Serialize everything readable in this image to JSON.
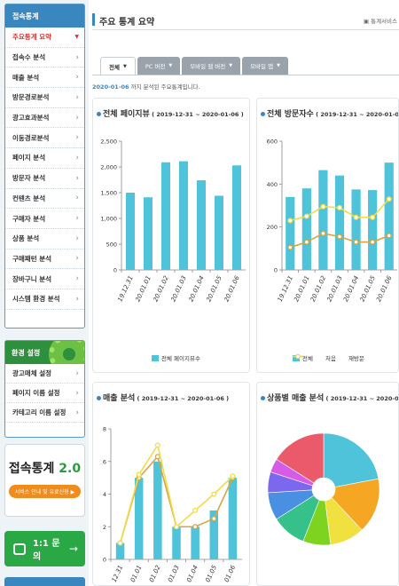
{
  "sidebar": {
    "title": "접속통계",
    "items": [
      {
        "label": "주요통계 요약",
        "active": true
      },
      {
        "label": "접속수 분석"
      },
      {
        "label": "매출 분석"
      },
      {
        "label": "방문경로분석"
      },
      {
        "label": "광고효과분석"
      },
      {
        "label": "이동경로분석"
      },
      {
        "label": "페이지 분석"
      },
      {
        "label": "방문자 분석"
      },
      {
        "label": "컨텐츠 분석"
      },
      {
        "label": "구매자 분석"
      },
      {
        "label": "상품 분석"
      },
      {
        "label": "구매패턴 분석"
      },
      {
        "label": "장바구니 분석"
      },
      {
        "label": "시스템 환경 분석"
      }
    ],
    "env": {
      "title": "환경 설정",
      "items": [
        {
          "label": "광고매체 설정"
        },
        {
          "label": "페이지 이름 설정"
        },
        {
          "label": "카테고리 이름 설정"
        }
      ]
    },
    "promo": {
      "title_prefix": "접속통계 ",
      "title_num": "2.0",
      "button": "서비스 안내 및 유료신청 ▶"
    },
    "qna": {
      "label": "1:1 문의",
      "arrow": "→"
    }
  },
  "header": {
    "title": "주요 통계 요약",
    "service_link": "▣ 통계서비스"
  },
  "tabs": [
    {
      "label": "전체",
      "active": true
    },
    {
      "label": "PC 버전"
    },
    {
      "label": "모바일 웹 버전"
    },
    {
      "label": "모바일 앱"
    }
  ],
  "summary": {
    "date": "2020-01-06",
    "text": " 까지 분석된 주요통계입니다."
  },
  "cards": {
    "pv": {
      "title": "전체 페이지뷰",
      "range": " ( 2019-12-31 ~ 2020-01-06 )",
      "legend": "전체 페이지뷰수"
    },
    "visit": {
      "title": "전체 방문자수",
      "range": " ( 2019-12-31 ~ 2020-01-06 )",
      "legend_total": "전체",
      "legend_first": "처음",
      "legend_re": "재방문"
    },
    "sales": {
      "title": "매출 분석",
      "range": " ( 2019-12-31 ~ 2020-01-06 )"
    },
    "product": {
      "title": "상품별 매출 분석",
      "range": " ( 2019-12-31 ~ 2020-01-06 )"
    }
  },
  "colors": {
    "bar": "#4ec3d9",
    "line_orange": "#d9a441",
    "line_yellow": "#f2dc4a",
    "accent_blue": "#3a86bf",
    "accent_green": "#2aa845"
  },
  "chart_data": [
    {
      "type": "bar",
      "title": "전체 페이지뷰 ( 2019-12-31 ~ 2020-01-06 )",
      "categories": [
        "19.12.31",
        "20.01.01",
        "20.01.02",
        "20.01.03",
        "20.01.04",
        "20.01.05",
        "20.01.06"
      ],
      "series": [
        {
          "name": "전체 페이지뷰수",
          "values": [
            1500,
            1410,
            2090,
            2110,
            1740,
            1440,
            2030
          ]
        }
      ],
      "yticks": [
        "0",
        "500",
        "1,000",
        "1,500",
        "2,000",
        "2,500"
      ],
      "ylim": [
        0,
        2500
      ]
    },
    {
      "type": "bar",
      "title": "전체 방문자수 ( 2019-12-31 ~ 2020-01-06 )",
      "categories": [
        "19.12.31",
        "20.01.01",
        "20.01.02",
        "20.01.03",
        "20.01.04",
        "20.01.05",
        "20.01.06"
      ],
      "series": [
        {
          "name": "전체",
          "type": "bar",
          "values": [
            340,
            380,
            465,
            440,
            375,
            372,
            500
          ]
        },
        {
          "name": "처음",
          "type": "line",
          "values": [
            105,
            130,
            170,
            155,
            130,
            130,
            160
          ]
        },
        {
          "name": "재방문",
          "type": "line",
          "values": [
            230,
            250,
            295,
            290,
            245,
            245,
            330
          ]
        }
      ],
      "yticks": [
        "0",
        "200",
        "400",
        "600"
      ],
      "ylim": [
        0,
        600
      ]
    },
    {
      "type": "bar",
      "title": "매출 분석 ( 2019-12-31 ~ 2020-01-06 )",
      "categories": [
        "12.31",
        "01.01",
        "01.02",
        "01.03",
        "01.04",
        "01.05",
        "01.06"
      ],
      "series": [
        {
          "type": "bar",
          "values": [
            1,
            5,
            6,
            2,
            2,
            3,
            5
          ]
        },
        {
          "type": "line",
          "values": [
            1,
            5,
            6.3,
            2,
            2,
            2.5,
            5
          ]
        },
        {
          "type": "line",
          "values": [
            1,
            5.2,
            7,
            2,
            3,
            4,
            5.1
          ]
        }
      ],
      "yticks": [
        "0",
        "2",
        "4",
        "6",
        "8"
      ],
      "ylim": [
        0,
        8
      ]
    },
    {
      "type": "pie",
      "title": "상품별 매출 분석 ( 2019-12-31 ~ 2020-01-06 )",
      "values": [
        22,
        16,
        10,
        8,
        10,
        8,
        6,
        4,
        16
      ],
      "colors": [
        "#4ec3d9",
        "#f5a623",
        "#f0e040",
        "#7ed321",
        "#36c08a",
        "#4a90e2",
        "#7b68ee",
        "#d65ce8",
        "#ea5a6a"
      ]
    }
  ]
}
